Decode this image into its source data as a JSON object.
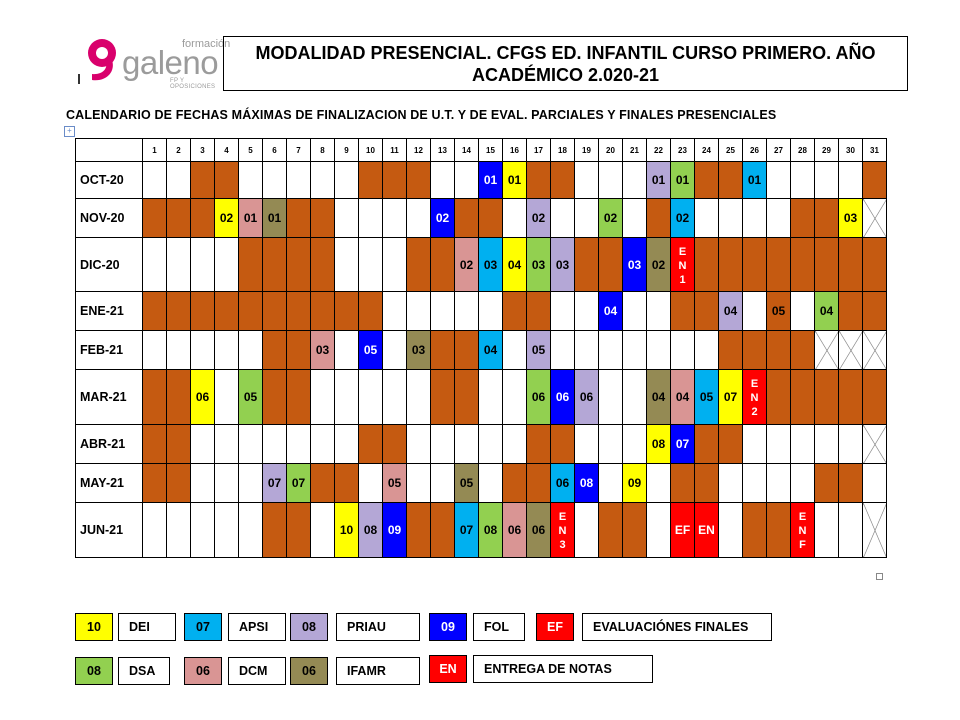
{
  "logo": {
    "top": "formación",
    "word": "galeno",
    "sub": "FP Y OPOSICIONES"
  },
  "title": {
    "line1": "MODALIDAD PRESENCIAL. CFGS ED. INFANTIL  CURSO PRIMERO. AÑO",
    "line2": "ACADÉMICO 2.020-21"
  },
  "subtitle": "CALENDARIO  DE FECHAS MÁXIMAS DE FINALIZACION DE U.T. Y DE EVAL. PARCIALES Y FINALES PRESENCIALES",
  "colors": {
    "orange": "#c55a11",
    "yellow": "#ffff00",
    "cyan": "#00b0f0",
    "lavender": "#b4a7d6",
    "blue": "#0000ff",
    "red": "#ff0000",
    "green": "#92d050",
    "pink": "#d99594",
    "olive": "#948a54"
  },
  "days": [
    "1",
    "2",
    "3",
    "4",
    "5",
    "6",
    "7",
    "8",
    "9",
    "10",
    "11",
    "12",
    "13",
    "14",
    "15",
    "16",
    "17",
    "18",
    "19",
    "20",
    "21",
    "22",
    "23",
    "24",
    "25",
    "26",
    "27",
    "28",
    "29",
    "30",
    "31"
  ],
  "months": [
    {
      "label": "OCT-20",
      "cells": [
        "w",
        "w",
        "o",
        "o",
        "w",
        "w",
        "w",
        "w",
        "w",
        "o",
        "o",
        "o",
        "w",
        "w",
        "01:blue",
        "01:yellow",
        "o",
        "o",
        "w",
        "w",
        "w",
        "01:lavender",
        "01:green",
        "o",
        "o",
        "01:cyan",
        "w",
        "w",
        "w",
        "w",
        "o"
      ]
    },
    {
      "label": "NOV-20",
      "cells": [
        "o",
        "o",
        "o",
        "02:yellow",
        "01:pink",
        "01:olive",
        "o",
        "o",
        "w",
        "w",
        "w",
        "w",
        "02:blue",
        "o",
        "o",
        "w",
        "02:lavender",
        "w",
        "w",
        "02:green",
        "w",
        "o",
        "02:cyan",
        "w",
        "w",
        "w",
        "w",
        "o",
        "o",
        "03:yellow",
        "x"
      ]
    },
    {
      "label": "DIC-20",
      "cells": [
        "w",
        "w",
        "w",
        "w",
        "o",
        "o",
        "o",
        "o",
        "w",
        "w",
        "w",
        "o",
        "o",
        "02:pink",
        "03:cyan",
        "04:yellow",
        "03:green",
        "03:lavender",
        "o",
        "o",
        "03:blue",
        "02:olive",
        "EN1:red",
        "o",
        "o",
        "o",
        "o",
        "o",
        "o",
        "o",
        "o"
      ]
    },
    {
      "label": "ENE-21",
      "cells": [
        "o",
        "o",
        "o",
        "o",
        "o",
        "o",
        "o",
        "o",
        "o",
        "o",
        "w",
        "w",
        "w",
        "w",
        "w",
        "o",
        "o",
        "w",
        "w",
        "04:blue",
        "w",
        "w",
        "o",
        "o",
        "04:lavender",
        "w",
        "05:orange",
        "w",
        "04:green",
        "o",
        "o"
      ]
    },
    {
      "label": "FEB-21",
      "cells": [
        "w",
        "w",
        "w",
        "w",
        "w",
        "o",
        "o",
        "03:pink",
        "w",
        "05:blue",
        "w",
        "03:olive",
        "o",
        "o",
        "04:cyan",
        "w",
        "05:lavender",
        "w",
        "w",
        "w",
        "w",
        "w",
        "w",
        "w",
        "o",
        "o",
        "o",
        "o",
        "x",
        "x",
        "x"
      ]
    },
    {
      "label": "MAR-21",
      "cells": [
        "o",
        "o",
        "06:yellow",
        "w",
        "05:green",
        "o",
        "o",
        "w",
        "w",
        "w",
        "w",
        "w",
        "o",
        "o",
        "w",
        "w",
        "06:green",
        "06:blue",
        "06:lavender",
        "w",
        "w",
        "04:olive",
        "04:pink",
        "05:cyan",
        "07:yellow",
        "EN2:red",
        "o",
        "o",
        "o",
        "o",
        "o"
      ]
    },
    {
      "label": "ABR-21",
      "cells": [
        "o",
        "o",
        "w",
        "w",
        "w",
        "w",
        "w",
        "w",
        "w",
        "o",
        "o",
        "w",
        "w",
        "w",
        "w",
        "w",
        "o",
        "o",
        "w",
        "w",
        "w",
        "08:yellow",
        "07:blue",
        "o",
        "o",
        "w",
        "w",
        "w",
        "w",
        "w",
        "x"
      ]
    },
    {
      "label": "MAY-21",
      "cells": [
        "o",
        "o",
        "w",
        "w",
        "w",
        "07:lavender",
        "07:green",
        "o",
        "o",
        "w",
        "05:pink",
        "w",
        "w",
        "05:olive",
        "w",
        "o",
        "o",
        "06:cyan",
        "08:blue",
        "w",
        "09:yellow",
        "w",
        "o",
        "o",
        "w",
        "w",
        "w",
        "w",
        "o",
        "o",
        "w"
      ]
    },
    {
      "label": "JUN-21",
      "cells": [
        "w",
        "w",
        "w",
        "w",
        "w",
        "o",
        "o",
        "w",
        "10:yellow",
        "08:lavender",
        "09:blue",
        "o",
        "o",
        "07:cyan",
        "08:green",
        "06:pink",
        "06:olive",
        "EN3:red",
        "w",
        "o",
        "o",
        "w",
        "EF:red",
        "EN:red",
        "w",
        "o",
        "o",
        "ENF:red",
        "w",
        "w",
        "x"
      ]
    }
  ],
  "legend": [
    {
      "code": "10",
      "name": "DEI",
      "color": "yellow"
    },
    {
      "code": "07",
      "name": "APSI",
      "color": "cyan"
    },
    {
      "code": "08",
      "name": "PRIAU",
      "color": "lavender"
    },
    {
      "code": "09",
      "name": "FOL",
      "color": "blue"
    },
    {
      "code": "EF",
      "name": "EVALUACIÓNES FINALES",
      "color": "red"
    },
    {
      "code": "08",
      "name": "DSA",
      "color": "green"
    },
    {
      "code": "06",
      "name": "DCM",
      "color": "pink"
    },
    {
      "code": "06",
      "name": "IFAMR",
      "color": "olive"
    },
    {
      "code": "EN",
      "name": "ENTREGA DE NOTAS",
      "color": "red"
    }
  ]
}
